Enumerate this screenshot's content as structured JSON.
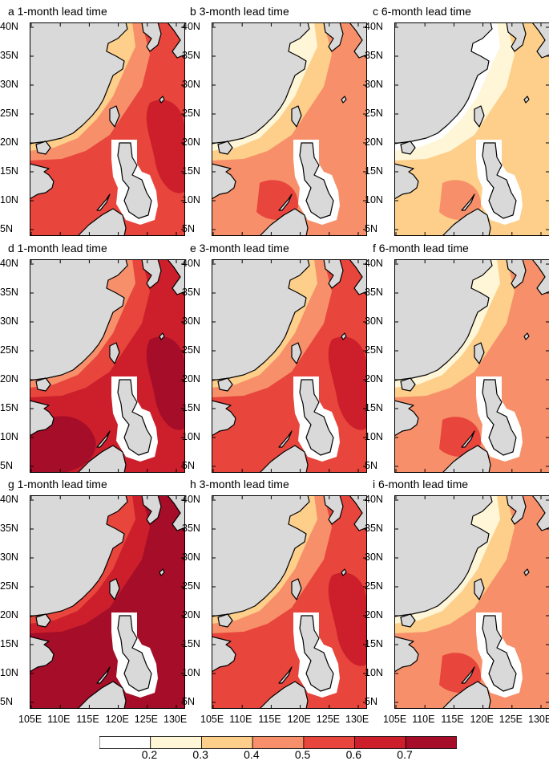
{
  "panels": [
    {
      "id": "a",
      "title": "a  1-month lead time",
      "level": 3
    },
    {
      "id": "b",
      "title": "b  3-month lead time",
      "level": 2
    },
    {
      "id": "c",
      "title": "c  6-month lead time",
      "level": 1
    },
    {
      "id": "d",
      "title": "d  1-month lead time",
      "level": 4
    },
    {
      "id": "e",
      "title": "e  3-month lead time",
      "level": 3
    },
    {
      "id": "f",
      "title": "f  6-month lead time",
      "level": 2
    },
    {
      "id": "g",
      "title": "g  1-month lead time",
      "level": 5
    },
    {
      "id": "h",
      "title": "h  3-month lead time",
      "level": 3
    },
    {
      "id": "i",
      "title": "i  6-month lead time",
      "level": 2
    }
  ],
  "lat_ticks": [
    "40N",
    "35N",
    "30N",
    "25N",
    "20N",
    "15N",
    "10N",
    "5N"
  ],
  "lon_ticks": [
    "105E",
    "110E",
    "115E",
    "120E",
    "125E",
    "130E"
  ],
  "colorbar": {
    "labels": [
      "0.2",
      "0.3",
      "0.4",
      "0.5",
      "0.6",
      "0.7"
    ],
    "colors": [
      "#ffffff",
      "#fef6d7",
      "#fdcf8a",
      "#f7906a",
      "#e8453c",
      "#cc1f2b",
      "#a50d28"
    ]
  },
  "colors": {
    "land": "#d9d9d9",
    "coast": "#000000"
  }
}
